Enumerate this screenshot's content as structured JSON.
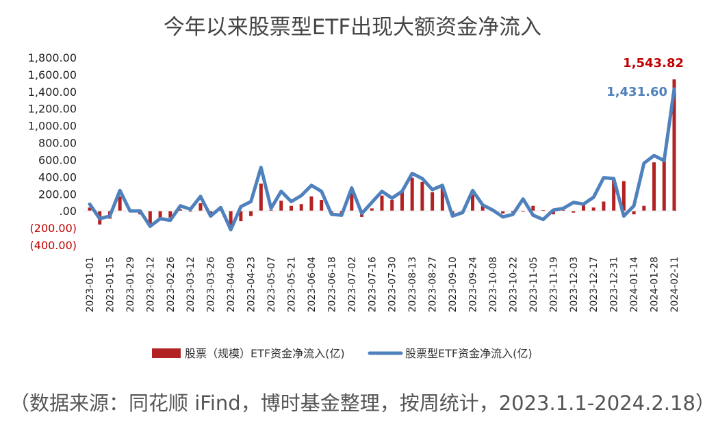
{
  "title": "今年以来股票型ETF出现大额资金净流入",
  "source_note": "（数据来源：同花顺 iFind，博时基金整理，按周统计，2023.1.1-2024.2.18）",
  "colors": {
    "bar": "#B22222",
    "line": "#4F81BD",
    "negative_tick": "#C00000",
    "positive_tick": "#222222",
    "grid": "#E0E0E0"
  },
  "chart_data": {
    "type": "bar+line",
    "title": "今年以来股票型ETF出现大额资金净流入",
    "xlabel": "",
    "ylabel": "",
    "ylim": [
      -400,
      1800
    ],
    "yticks": [
      {
        "v": 1800,
        "label": "1,800.00"
      },
      {
        "v": 1600,
        "label": "1,600.00"
      },
      {
        "v": 1400,
        "label": "1,400.00"
      },
      {
        "v": 1200,
        "label": "1,200.00"
      },
      {
        "v": 1000,
        "label": "1,000.00"
      },
      {
        "v": 800,
        "label": "800.00"
      },
      {
        "v": 600,
        "label": "600.00"
      },
      {
        "v": 400,
        "label": "400.00"
      },
      {
        "v": 200,
        "label": "200.00"
      },
      {
        "v": 0,
        "label": ".00"
      },
      {
        "v": -200,
        "label": "(200.00)"
      },
      {
        "v": -400,
        "label": "(400.00)"
      }
    ],
    "x": [
      "2023-01-01",
      "2023-01-08",
      "2023-01-15",
      "2023-01-22",
      "2023-01-29",
      "2023-02-05",
      "2023-02-12",
      "2023-02-19",
      "2023-02-26",
      "2023-03-05",
      "2023-03-12",
      "2023-03-19",
      "2023-03-26",
      "2023-04-02",
      "2023-04-09",
      "2023-04-16",
      "2023-04-23",
      "2023-04-30",
      "2023-05-07",
      "2023-05-14",
      "2023-05-21",
      "2023-05-28",
      "2023-06-04",
      "2023-06-11",
      "2023-06-18",
      "2023-06-25",
      "2023-07-02",
      "2023-07-09",
      "2023-07-16",
      "2023-07-23",
      "2023-07-30",
      "2023-08-06",
      "2023-08-13",
      "2023-08-20",
      "2023-08-27",
      "2023-09-03",
      "2023-09-10",
      "2023-09-17",
      "2023-09-24",
      "2023-10-01",
      "2023-10-08",
      "2023-10-15",
      "2023-10-22",
      "2023-10-29",
      "2023-11-05",
      "2023-11-12",
      "2023-11-19",
      "2023-11-26",
      "2023-12-03",
      "2023-12-10",
      "2023-12-17",
      "2023-12-24",
      "2023-12-31",
      "2024-01-07",
      "2024-01-14",
      "2024-01-21",
      "2024-01-28",
      "2024-02-04",
      "2024-02-11"
    ],
    "xtick_labels": [
      "2023-01-01",
      "2023-01-15",
      "2023-01-29",
      "2023-02-12",
      "2023-02-26",
      "2023-03-12",
      "2023-03-26",
      "2023-04-09",
      "2023-04-23",
      "2023-05-07",
      "2023-05-21",
      "2023-06-04",
      "2023-06-18",
      "2023-07-02",
      "2023-07-16",
      "2023-07-30",
      "2023-08-13",
      "2023-08-27",
      "2023-09-10",
      "2023-09-24",
      "2023-10-08",
      "2023-10-22",
      "2023-11-05",
      "2023-11-19",
      "2023-12-03",
      "2023-12-17",
      "2023-12-31",
      "2024-01-14",
      "2024-01-28",
      "2024-02-11"
    ],
    "series": [
      {
        "name": "股票（规模）ETF资金净流入(亿)",
        "type": "bar",
        "values": [
          40,
          -160,
          -90,
          170,
          0,
          -40,
          -190,
          -110,
          -80,
          20,
          -10,
          90,
          -70,
          20,
          -220,
          -120,
          -60,
          320,
          10,
          120,
          60,
          80,
          170,
          130,
          -40,
          -30,
          210,
          -70,
          30,
          180,
          130,
          230,
          390,
          340,
          220,
          270,
          -40,
          -10,
          190,
          60,
          0,
          -30,
          -20,
          -10,
          60,
          10,
          -40,
          10,
          -20,
          90,
          40,
          110,
          370,
          350,
          -40,
          60,
          570,
          620,
          1543.82
        ]
      },
      {
        "name": "股票型ETF资金净流入(亿)",
        "type": "line",
        "values": [
          80,
          -90,
          -60,
          240,
          0,
          0,
          -180,
          -90,
          -110,
          60,
          20,
          170,
          -60,
          40,
          -220,
          50,
          110,
          510,
          30,
          230,
          110,
          180,
          300,
          230,
          -40,
          -50,
          270,
          -30,
          100,
          230,
          150,
          230,
          440,
          380,
          250,
          300,
          -60,
          -20,
          240,
          70,
          10,
          -70,
          -40,
          140,
          -50,
          -100,
          10,
          30,
          100,
          80,
          160,
          390,
          380,
          -60,
          60,
          560,
          650,
          590,
          1431.6
        ]
      }
    ],
    "annotations": [
      {
        "text": "1,543.82",
        "series": 0,
        "index": 58,
        "color": "#C00000"
      },
      {
        "text": "1,431.60",
        "series": 1,
        "index": 58,
        "color": "#4F81BD"
      }
    ],
    "legend": {
      "position": "bottom",
      "entries": [
        "股票（规模）ETF资金净流入(亿)",
        "股票型ETF资金净流入(亿)"
      ]
    },
    "grid": false
  }
}
